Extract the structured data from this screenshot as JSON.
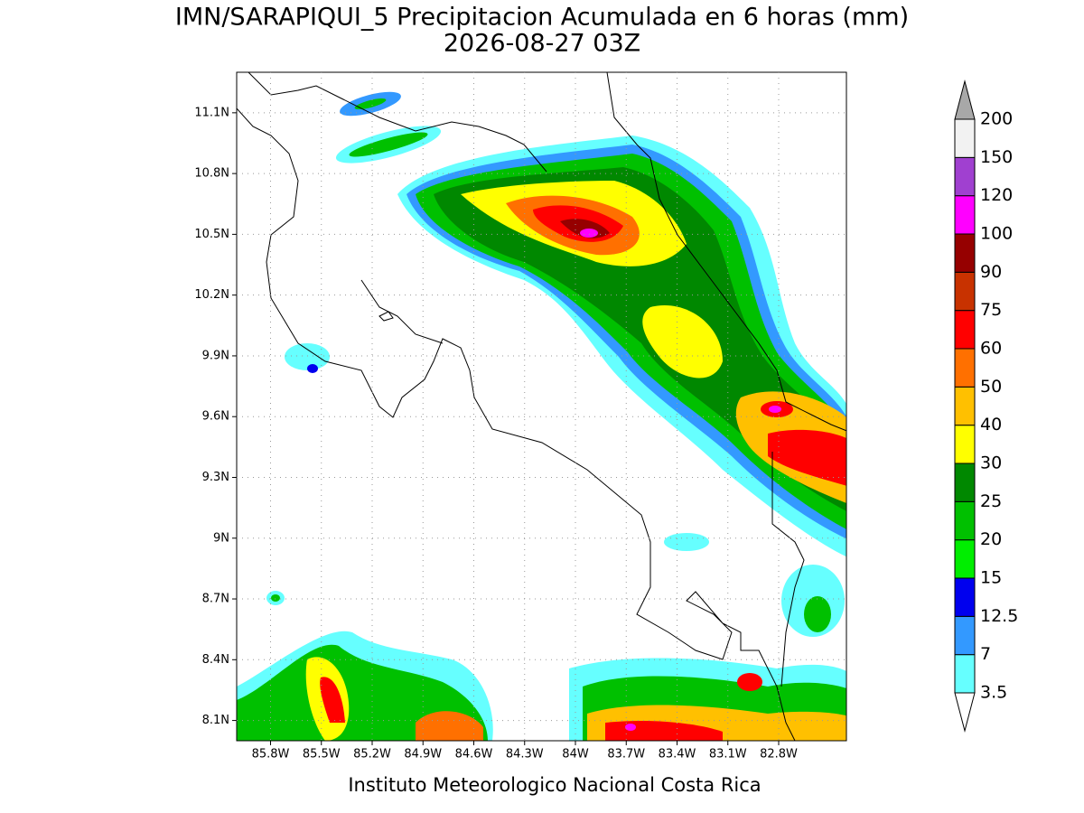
{
  "title": "IMN/SARAPIQUI_5 Precipitacion Acumulada en 6 horas (mm)",
  "subtitle": "2026-08-27 03Z",
  "footer": "Instituto Meteorologico Nacional Costa Rica",
  "map": {
    "lonlim": [
      -86.0,
      -82.4
    ],
    "latlim": [
      8.0,
      11.3
    ],
    "lon_ticks": [
      {
        "value": -85.8,
        "label": "85.8W"
      },
      {
        "value": -85.5,
        "label": "85.5W"
      },
      {
        "value": -85.2,
        "label": "85.2W"
      },
      {
        "value": -84.9,
        "label": "84.9W"
      },
      {
        "value": -84.6,
        "label": "84.6W"
      },
      {
        "value": -84.3,
        "label": "84.3W"
      },
      {
        "value": -84.0,
        "label": "84W"
      },
      {
        "value": -83.7,
        "label": "83.7W"
      },
      {
        "value": -83.4,
        "label": "83.4W"
      },
      {
        "value": -83.1,
        "label": "83.1W"
      },
      {
        "value": -82.8,
        "label": "82.8W"
      }
    ],
    "lat_ticks": [
      {
        "value": 8.1,
        "label": "8.1N"
      },
      {
        "value": 8.4,
        "label": "8.4N"
      },
      {
        "value": 8.7,
        "label": "8.7N"
      },
      {
        "value": 9.0,
        "label": "9N"
      },
      {
        "value": 9.3,
        "label": "9.3N"
      },
      {
        "value": 9.6,
        "label": "9.6N"
      },
      {
        "value": 9.9,
        "label": "9.9N"
      },
      {
        "value": 10.2,
        "label": "10.2N"
      },
      {
        "value": 10.5,
        "label": "10.5N"
      },
      {
        "value": 10.8,
        "label": "10.8N"
      },
      {
        "value": 11.1,
        "label": "11.1N"
      }
    ],
    "grid": true
  },
  "colorbar": {
    "levels": [
      3.5,
      7,
      12.5,
      15,
      20,
      25,
      30,
      40,
      50,
      60,
      75,
      90,
      100,
      120,
      150,
      200
    ],
    "colors": [
      "#66ffff",
      "#3399ff",
      "#0000ee",
      "#00ee00",
      "#00c000",
      "#008800",
      "#ffff00",
      "#ffc000",
      "#ff7000",
      "#ff0000",
      "#c83200",
      "#960000",
      "#ff00ff",
      "#a040d0",
      "#f2f2f2"
    ],
    "under_color": "#ffffff",
    "over_color": "#a8a8a8"
  }
}
